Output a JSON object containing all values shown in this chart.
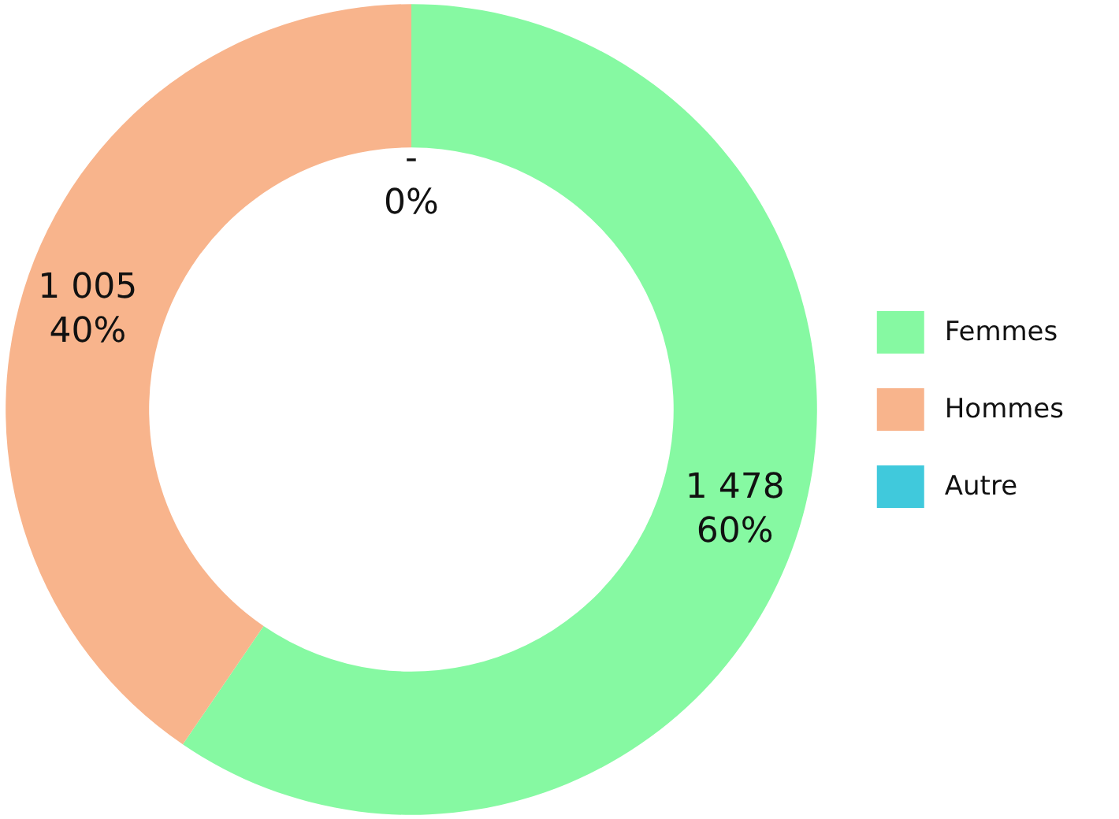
{
  "chart_data": {
    "type": "donut",
    "categories": [
      "Femmes",
      "Hommes",
      "Autre"
    ],
    "values": [
      1478,
      1005,
      0
    ],
    "colors": [
      "#86f9a2",
      "#f8b48c",
      "#40c9dc"
    ],
    "value_labels": [
      "1 478\n60%",
      "1 005\n40%",
      "-\n0%"
    ],
    "legend": "right"
  }
}
